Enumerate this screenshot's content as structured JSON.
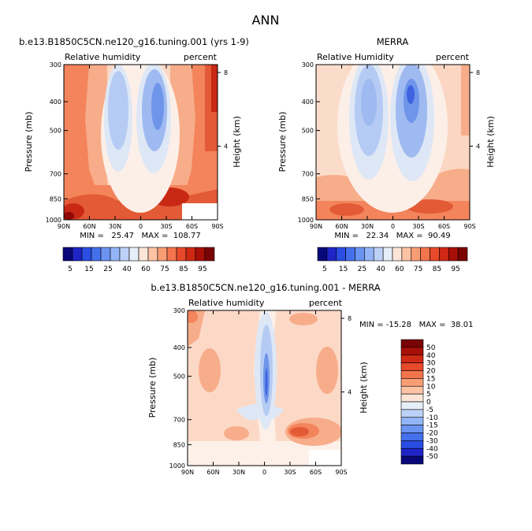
{
  "figure_title": "ANN",
  "chart_data": [
    {
      "type": "heatmap",
      "title": "b.e13.B1850C5CN.ne120_g16.tuning.001 (yrs 1-9)",
      "left_label": "Relative humidity",
      "right_label": "percent",
      "ylabel": "Pressure (mb)",
      "y2label": "Height (km)",
      "x_ticks": [
        "90N",
        "60N",
        "30N",
        "0",
        "30S",
        "60S",
        "90S"
      ],
      "y_ticks": [
        "300",
        "400",
        "500",
        "700",
        "850",
        "1000"
      ],
      "y2_ticks": [
        "8",
        "4"
      ],
      "stats": "MIN =   25.47   MAX =  108.77",
      "min": 25.47,
      "max": 108.77,
      "colorbar": {
        "orientation": "horizontal",
        "labels": [
          "5",
          "15",
          "25",
          "40",
          "60",
          "75",
          "85",
          "95"
        ],
        "colors": [
          "#08087a",
          "#1f24c7",
          "#2a4de3",
          "#4470ec",
          "#6b93f2",
          "#93b4f6",
          "#bcd1f7",
          "#e6eef8",
          "#fde5d8",
          "#fcc3a4",
          "#f99d75",
          "#f3744d",
          "#e8492a",
          "#cf2814",
          "#a80f08",
          "#7a0303"
        ]
      }
    },
    {
      "type": "heatmap",
      "title": "MERRA",
      "left_label": "Relative Humidity",
      "right_label": "percent",
      "ylabel": "Pressure (mb)",
      "y2label": "Height (km)",
      "x_ticks": [
        "90N",
        "60N",
        "30N",
        "0",
        "30S",
        "60S",
        "90S"
      ],
      "y_ticks": [
        "300",
        "400",
        "500",
        "700",
        "850",
        "1000"
      ],
      "y2_ticks": [
        "8",
        "4"
      ],
      "stats": "MIN =   22.34   MAX =  90.49",
      "min": 22.34,
      "max": 90.49,
      "colorbar": {
        "orientation": "horizontal",
        "labels": [
          "5",
          "15",
          "25",
          "40",
          "60",
          "75",
          "85",
          "95"
        ],
        "colors": [
          "#08087a",
          "#1f24c7",
          "#2a4de3",
          "#4470ec",
          "#6b93f2",
          "#93b4f6",
          "#bcd1f7",
          "#e6eef8",
          "#fde5d8",
          "#fcc3a4",
          "#f99d75",
          "#f3744d",
          "#e8492a",
          "#cf2814",
          "#a80f08",
          "#7a0303"
        ]
      }
    },
    {
      "type": "heatmap",
      "title": "b.e13.B1850C5CN.ne120_g16.tuning.001 - MERRA",
      "left_label": "Relative humidity",
      "right_label": "percent",
      "ylabel": "Pressure (mb)",
      "y2label": "Height (km)",
      "x_ticks": [
        "90N",
        "60N",
        "30N",
        "0",
        "30S",
        "60S",
        "90S"
      ],
      "y_ticks": [
        "300",
        "400",
        "500",
        "700",
        "850",
        "1000"
      ],
      "y2_ticks": [
        "8",
        "4"
      ],
      "stats": "MIN = -15.28   MAX =  38.01",
      "min": -15.28,
      "max": 38.01,
      "colorbar": {
        "orientation": "vertical",
        "labels": [
          "50",
          "40",
          "30",
          "20",
          "15",
          "10",
          "5",
          "0",
          "-5",
          "-10",
          "-15",
          "-20",
          "-30",
          "-40",
          "-50"
        ],
        "colors": [
          "#7a0303",
          "#a80f08",
          "#cf2814",
          "#e8492a",
          "#f3744d",
          "#f99d75",
          "#fcc3a4",
          "#fde5d8",
          "#e6eef8",
          "#bcd1f7",
          "#93b4f6",
          "#6b93f2",
          "#4470ec",
          "#2a4de3",
          "#1f24c7",
          "#08087a"
        ]
      }
    }
  ]
}
